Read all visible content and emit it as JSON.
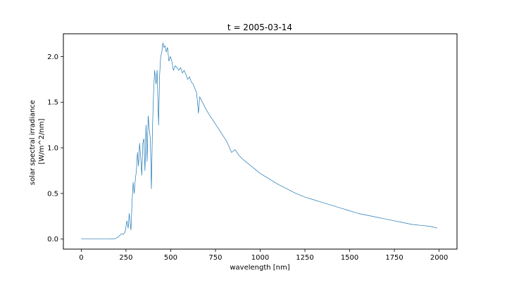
{
  "chart_data": {
    "type": "line",
    "title": "t = 2005-03-14",
    "xlabel": "wavelength [nm]",
    "ylabel_lines": [
      "solar spectral irradiance",
      "[W/m^2/nm]"
    ],
    "xlim": [
      -100,
      2100
    ],
    "ylim": [
      -0.11,
      2.25
    ],
    "xticks": [
      0,
      250,
      500,
      750,
      1000,
      1250,
      1500,
      1750,
      2000
    ],
    "yticks": [
      0.0,
      0.5,
      1.0,
      1.5,
      2.0
    ],
    "xtick_labels": [
      "0",
      "250",
      "500",
      "750",
      "1000",
      "1250",
      "1500",
      "1750",
      "2000"
    ],
    "ytick_labels": [
      "0.0",
      "0.5",
      "1.0",
      "1.5",
      "2.0"
    ],
    "grid": false,
    "legend": null,
    "series": [
      {
        "color": "#1f77b4",
        "points": [
          [
            0,
            0.0
          ],
          [
            50,
            0.0
          ],
          [
            100,
            0.0
          ],
          [
            150,
            0.0
          ],
          [
            190,
            0.005
          ],
          [
            205,
            0.02
          ],
          [
            215,
            0.04
          ],
          [
            225,
            0.06
          ],
          [
            235,
            0.05
          ],
          [
            245,
            0.08
          ],
          [
            255,
            0.2
          ],
          [
            262,
            0.12
          ],
          [
            268,
            0.28
          ],
          [
            272,
            0.2
          ],
          [
            278,
            0.1
          ],
          [
            284,
            0.42
          ],
          [
            290,
            0.62
          ],
          [
            296,
            0.5
          ],
          [
            302,
            0.65
          ],
          [
            308,
            0.75
          ],
          [
            314,
            0.95
          ],
          [
            320,
            0.8
          ],
          [
            326,
            1.05
          ],
          [
            332,
            0.9
          ],
          [
            338,
            0.7
          ],
          [
            344,
            1.05
          ],
          [
            350,
            1.1
          ],
          [
            356,
            0.75
          ],
          [
            362,
            1.25
          ],
          [
            368,
            0.85
          ],
          [
            374,
            1.35
          ],
          [
            380,
            1.2
          ],
          [
            386,
            1.1
          ],
          [
            392,
            0.55
          ],
          [
            398,
            1.2
          ],
          [
            404,
            1.6
          ],
          [
            410,
            1.85
          ],
          [
            418,
            1.7
          ],
          [
            424,
            1.85
          ],
          [
            432,
            1.25
          ],
          [
            438,
            1.8
          ],
          [
            444,
            2.0
          ],
          [
            450,
            2.05
          ],
          [
            456,
            2.15
          ],
          [
            462,
            2.1
          ],
          [
            468,
            2.12
          ],
          [
            475,
            2.05
          ],
          [
            482,
            2.1
          ],
          [
            490,
            1.95
          ],
          [
            498,
            2.0
          ],
          [
            506,
            1.95
          ],
          [
            515,
            1.85
          ],
          [
            525,
            1.9
          ],
          [
            535,
            1.88
          ],
          [
            545,
            1.85
          ],
          [
            555,
            1.88
          ],
          [
            565,
            1.82
          ],
          [
            575,
            1.85
          ],
          [
            585,
            1.8
          ],
          [
            595,
            1.75
          ],
          [
            605,
            1.78
          ],
          [
            615,
            1.72
          ],
          [
            625,
            1.7
          ],
          [
            635,
            1.65
          ],
          [
            645,
            1.6
          ],
          [
            655,
            1.38
          ],
          [
            662,
            1.56
          ],
          [
            672,
            1.52
          ],
          [
            690,
            1.45
          ],
          [
            710,
            1.38
          ],
          [
            730,
            1.32
          ],
          [
            750,
            1.26
          ],
          [
            770,
            1.2
          ],
          [
            790,
            1.14
          ],
          [
            810,
            1.08
          ],
          [
            825,
            1.02
          ],
          [
            840,
            0.95
          ],
          [
            860,
            0.98
          ],
          [
            880,
            0.92
          ],
          [
            900,
            0.88
          ],
          [
            925,
            0.84
          ],
          [
            950,
            0.8
          ],
          [
            975,
            0.76
          ],
          [
            1000,
            0.72
          ],
          [
            1050,
            0.66
          ],
          [
            1100,
            0.6
          ],
          [
            1150,
            0.55
          ],
          [
            1200,
            0.5
          ],
          [
            1250,
            0.46
          ],
          [
            1300,
            0.43
          ],
          [
            1350,
            0.4
          ],
          [
            1400,
            0.37
          ],
          [
            1450,
            0.34
          ],
          [
            1500,
            0.31
          ],
          [
            1550,
            0.28
          ],
          [
            1600,
            0.26
          ],
          [
            1650,
            0.24
          ],
          [
            1700,
            0.22
          ],
          [
            1750,
            0.2
          ],
          [
            1800,
            0.18
          ],
          [
            1850,
            0.16
          ],
          [
            1900,
            0.15
          ],
          [
            1950,
            0.14
          ],
          [
            1990,
            0.12
          ]
        ]
      }
    ]
  }
}
